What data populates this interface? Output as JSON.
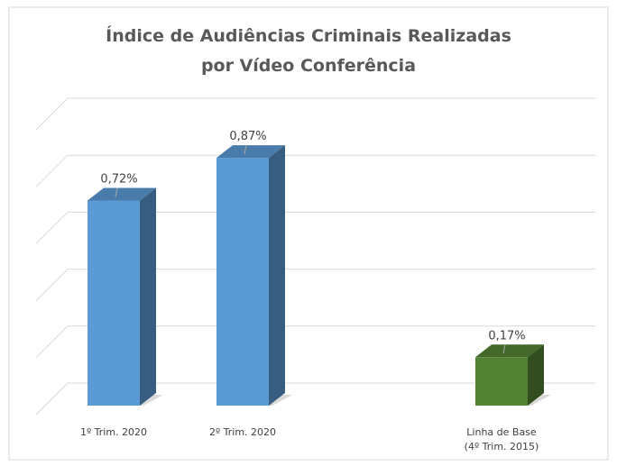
{
  "chart_data": {
    "type": "bar3d",
    "title": "Índice de Audiências Criminais Realizadas\npor Vídeo Conferência",
    "categories": [
      "1º Trim. 2020",
      "2º Trim. 2020",
      "Linha de Base\n(4º Trim. 2015)"
    ],
    "values": [
      0.72,
      0.87,
      0.17
    ],
    "value_labels": [
      "0,72%",
      "0,87%",
      "0,17%"
    ],
    "colors": [
      "#5b9bd5",
      "#5b9bd5",
      "#548235"
    ],
    "ylim": [
      0,
      1
    ],
    "yticks": [
      0,
      0.2,
      0.4,
      0.6,
      0.8,
      1
    ],
    "grid": true
  }
}
